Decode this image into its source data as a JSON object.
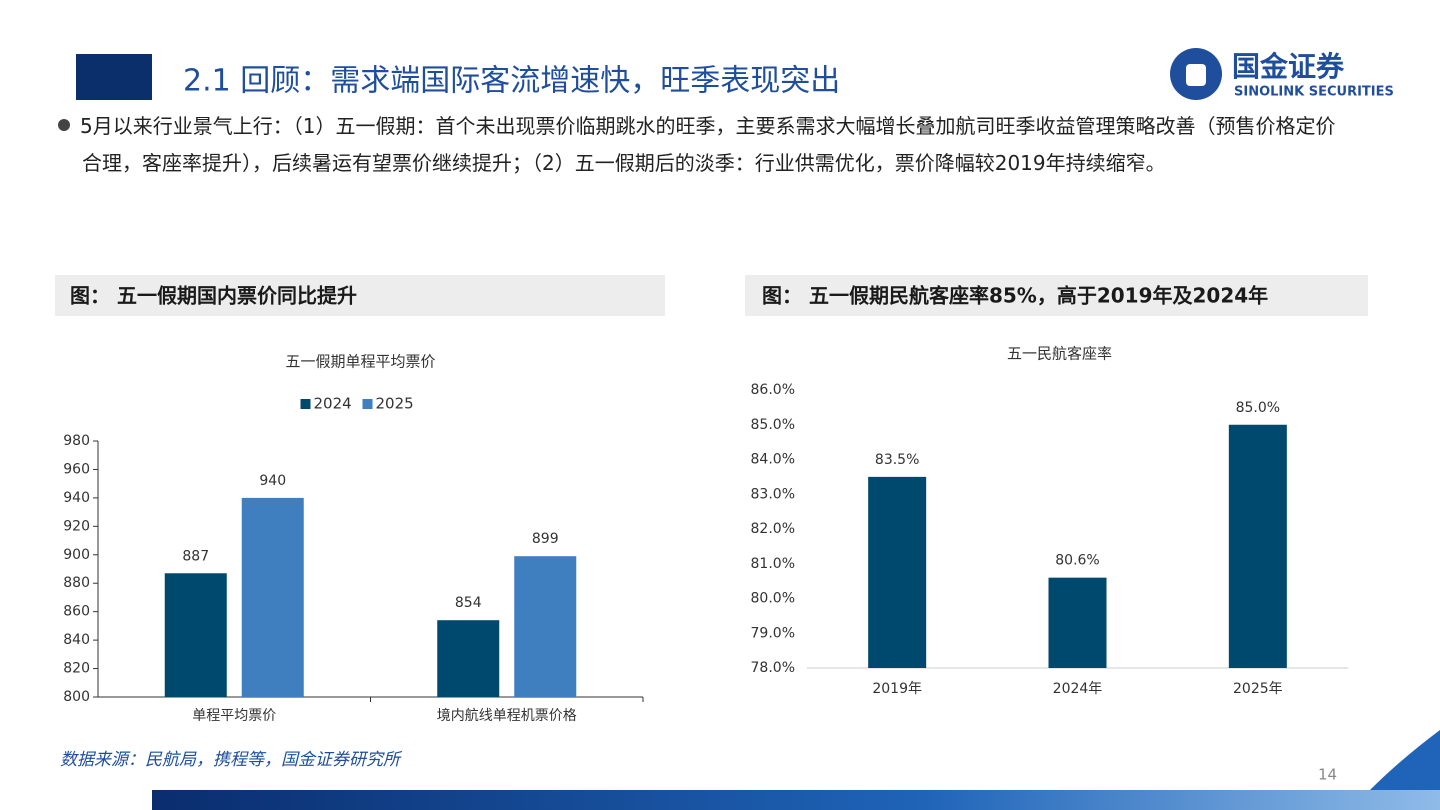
{
  "header": {
    "title": "2.1 回顾：需求端国际客流增速快，旺季表现突出",
    "logo_cn": "国金证券",
    "logo_en": "SINOLINK SECURITIES"
  },
  "bullet": "5月以来行业景气上行：（1）五一假期：首个未出现票价临期跳水的旺季，主要系需求大幅增长叠加航司旺季收益管理策略改善（预售价格定价合理，客座率提升），后续暑运有望票价继续提升；（2）五一假期后的淡季：行业供需优化，票价降幅较2019年持续缩窄。",
  "chart_data": [
    {
      "type": "bar",
      "caption": "图： 五一假期国内票价同比提升",
      "title": "五一假期单程平均票价",
      "categories": [
        "单程平均票价",
        "境内航线单程机票价格"
      ],
      "series": [
        {
          "name": "2024",
          "color": "#00496e",
          "values": [
            887,
            854
          ]
        },
        {
          "name": "2025",
          "color": "#3f7fbf",
          "values": [
            940,
            899
          ]
        }
      ],
      "ylim": [
        800,
        980
      ],
      "yticks": [
        800,
        820,
        840,
        860,
        880,
        900,
        920,
        940,
        960,
        980
      ],
      "legend": "top"
    },
    {
      "type": "bar",
      "caption": "图： 五一假期民航客座率85%，高于2019年及2024年",
      "title": "五一民航客座率",
      "categories": [
        "2019年",
        "2024年",
        "2025年"
      ],
      "series": [
        {
          "color": "#00496e",
          "values": [
            83.5,
            80.6,
            85.0
          ],
          "value_labels": [
            "83.5%",
            "80.6%",
            "85.0%"
          ]
        }
      ],
      "ylim": [
        78,
        86
      ],
      "yticks": [
        {
          "value": 78,
          "label": "78.0%"
        },
        {
          "value": 79,
          "label": "79.0%"
        },
        {
          "value": 80,
          "label": "80.0%"
        },
        {
          "value": 81,
          "label": "81.0%"
        },
        {
          "value": 82,
          "label": "82.0%"
        },
        {
          "value": 83,
          "label": "83.0%"
        },
        {
          "value": 84,
          "label": "84.0%"
        },
        {
          "value": 85,
          "label": "85.0%"
        },
        {
          "value": 86,
          "label": "86.0%"
        }
      ]
    }
  ],
  "source": "数据来源：民航局，携程等，国金证券研究所",
  "page_number": "14"
}
